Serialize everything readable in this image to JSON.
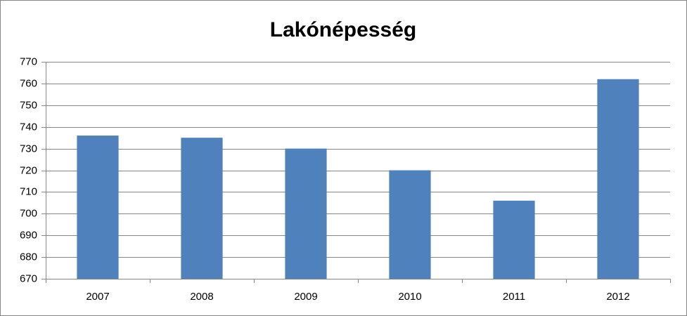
{
  "chart_data": {
    "type": "bar",
    "title": "Lakónépesség",
    "categories": [
      "2007",
      "2008",
      "2009",
      "2010",
      "2011",
      "2012"
    ],
    "values": [
      736,
      735,
      730,
      720,
      706,
      762
    ],
    "color": "#4f81bd",
    "ylim": [
      670,
      770
    ],
    "yticks": [
      670,
      680,
      690,
      700,
      710,
      720,
      730,
      740,
      750,
      760,
      770
    ],
    "grid": true
  }
}
